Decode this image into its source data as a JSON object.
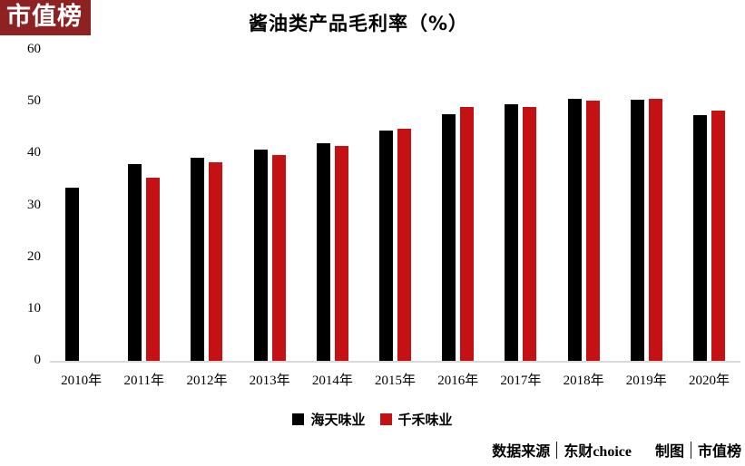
{
  "logo": {
    "text": "市值榜",
    "bg_color": "#8E2121",
    "text_color": "#FFFFFF"
  },
  "title": "酱油类产品毛利率（%）",
  "chart_data": {
    "type": "bar",
    "title": "酱油类产品毛利率（%）",
    "categories": [
      "2010年",
      "2011年",
      "2012年",
      "2013年",
      "2014年",
      "2015年",
      "2016年",
      "2017年",
      "2018年",
      "2019年",
      "2020年"
    ],
    "series": [
      {
        "name": "海天味业",
        "color": "#000000",
        "values": [
          33.5,
          37.9,
          39.2,
          40.7,
          41.9,
          44.4,
          47.6,
          49.5,
          50.5,
          50.4,
          47.4
        ]
      },
      {
        "name": "千禾味业",
        "color": "#C41114",
        "values": [
          null,
          35.4,
          38.3,
          39.7,
          41.4,
          44.8,
          48.9,
          48.9,
          50.2,
          50.5,
          48.3
        ]
      }
    ],
    "xlabel": "",
    "ylabel": "",
    "ylim": [
      0,
      60
    ],
    "yticks": [
      0,
      10,
      20,
      30,
      40,
      50,
      60
    ],
    "grid": false,
    "legend_position": "bottom",
    "axis_line_color": "#D9D9D9"
  },
  "legend": {
    "items": [
      {
        "label": "海天味业",
        "color": "#000000"
      },
      {
        "label": "千禾味业",
        "color": "#C41114"
      }
    ]
  },
  "source": {
    "label1": "数据来源",
    "value1": "东财choice",
    "label2": "制图",
    "value2": "市值榜"
  }
}
